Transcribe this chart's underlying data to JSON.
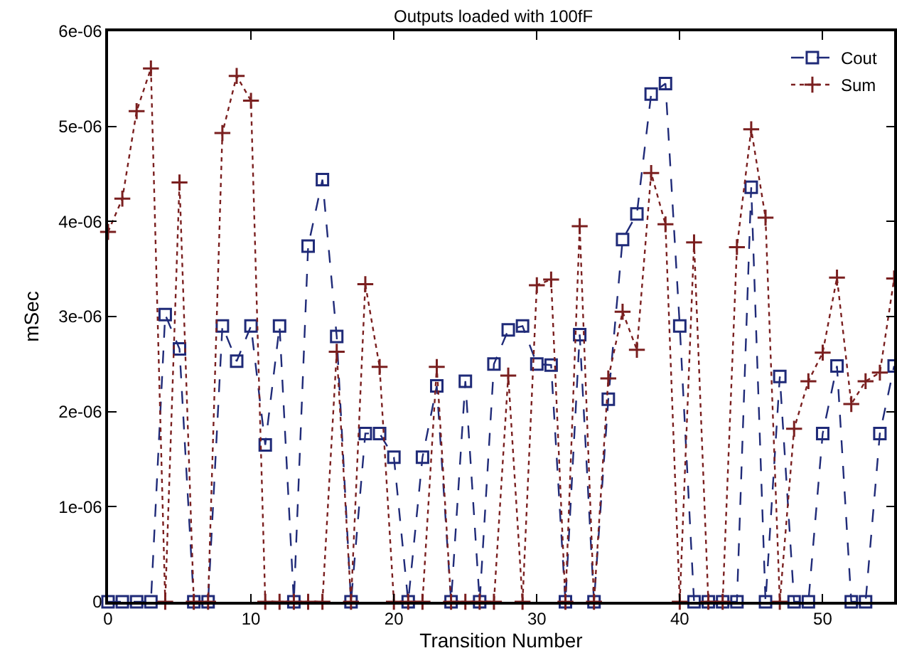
{
  "chart_data": {
    "type": "line",
    "title": "Outputs loaded with 100fF",
    "xlabel": "Transition Number",
    "ylabel": "mSec",
    "x": [
      0,
      1,
      2,
      3,
      4,
      5,
      6,
      7,
      8,
      9,
      10,
      11,
      12,
      13,
      14,
      15,
      16,
      17,
      18,
      19,
      20,
      21,
      22,
      23,
      24,
      25,
      26,
      27,
      28,
      29,
      30,
      31,
      32,
      33,
      34,
      35,
      36,
      37,
      38,
      39,
      40,
      41,
      42,
      43,
      44,
      45,
      46,
      47,
      48,
      49,
      50,
      51,
      52,
      53,
      54,
      55
    ],
    "series": [
      {
        "name": "Cout",
        "color": "#1f2a78",
        "marker": "square",
        "line_style": "dashed",
        "values": [
          0,
          0,
          0,
          0,
          3.02e-06,
          2.66e-06,
          0,
          0,
          2.9e-06,
          2.53e-06,
          2.9e-06,
          1.65e-06,
          2.9e-06,
          0,
          3.74e-06,
          4.44e-06,
          2.79e-06,
          0,
          1.77e-06,
          1.77e-06,
          1.52e-06,
          0,
          1.52e-06,
          2.27e-06,
          0,
          2.32e-06,
          0,
          2.5e-06,
          2.86e-06,
          2.9e-06,
          2.5e-06,
          2.49e-06,
          0,
          2.81e-06,
          0,
          2.13e-06,
          3.81e-06,
          4.08e-06,
          5.34e-06,
          5.45e-06,
          2.9e-06,
          0,
          0,
          0,
          0,
          4.36e-06,
          0,
          2.37e-06,
          0,
          0,
          1.77e-06,
          2.48e-06,
          0,
          0,
          1.77e-06,
          2.48e-06
        ]
      },
      {
        "name": "Sum",
        "color": "#7a1f1f",
        "marker": "cross",
        "line_style": "dotted",
        "values": [
          3.89e-06,
          4.24e-06,
          5.16e-06,
          5.61e-06,
          0,
          4.41e-06,
          0,
          0,
          4.93e-06,
          5.53e-06,
          5.27e-06,
          0,
          0,
          0,
          0,
          0,
          2.63e-06,
          0,
          3.34e-06,
          2.47e-06,
          0,
          0,
          0,
          2.47e-06,
          0,
          0,
          0,
          0,
          2.38e-06,
          0,
          3.33e-06,
          3.39e-06,
          0,
          3.95e-06,
          0,
          2.35e-06,
          3.05e-06,
          2.65e-06,
          4.51e-06,
          3.97e-06,
          0,
          3.78e-06,
          0,
          0,
          3.73e-06,
          4.97e-06,
          4.04e-06,
          0,
          1.82e-06,
          2.32e-06,
          2.62e-06,
          3.41e-06,
          2.08e-06,
          2.32e-06,
          2.41e-06,
          3.4e-06
        ]
      }
    ],
    "xlim": [
      0,
      55
    ],
    "xticks": [
      0,
      10,
      20,
      30,
      40,
      50
    ],
    "ylim": [
      0,
      6e-06
    ],
    "yticks": [
      0,
      {
        "value": 1e-06,
        "label": "1e-06"
      },
      {
        "value": 2e-06,
        "label": "2e-06"
      },
      {
        "value": 3e-06,
        "label": "3e-06"
      },
      {
        "value": 4e-06,
        "label": "4e-06"
      },
      {
        "value": 5e-06,
        "label": "5e-06"
      },
      {
        "value": 6e-06,
        "label": "6e-06"
      }
    ],
    "grid": false,
    "legend": "top right"
  }
}
